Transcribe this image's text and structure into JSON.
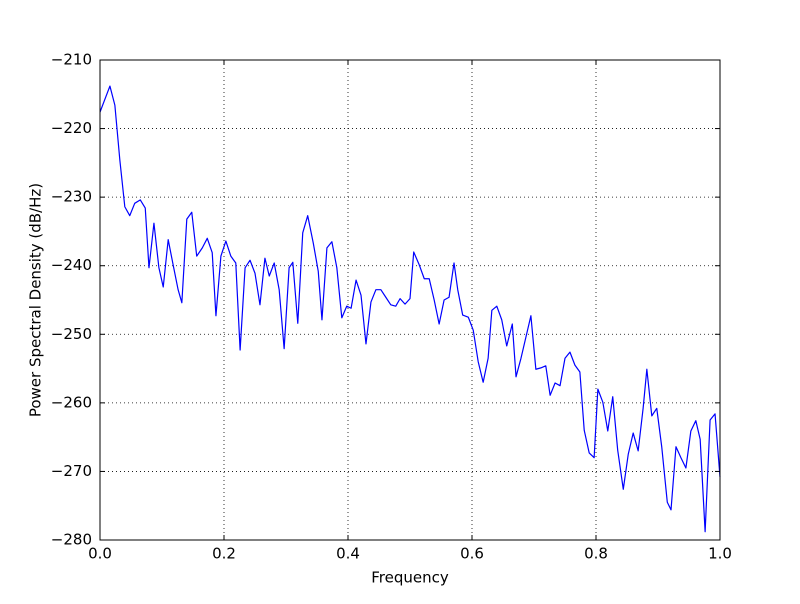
{
  "chart_data": {
    "type": "line",
    "xlabel": "Frequency",
    "ylabel": "Power Spectral Density (dB/Hz)",
    "xlim": [
      0,
      1
    ],
    "ylim": [
      -280,
      -210
    ],
    "xticks": [
      {
        "value": 0,
        "label": "0.0"
      },
      0.2,
      0.4,
      0.6,
      0.8,
      {
        "value": 1,
        "label": "1.0"
      }
    ],
    "yticks": [
      {
        "value": -280,
        "label": "−280"
      },
      {
        "value": -270,
        "label": "−270"
      },
      {
        "value": -260,
        "label": "−260"
      },
      {
        "value": -250,
        "label": "−250"
      },
      {
        "value": -240,
        "label": "−240"
      },
      {
        "value": -230,
        "label": "−230"
      },
      {
        "value": -220,
        "label": "−220"
      },
      {
        "value": -210,
        "label": "−210"
      }
    ],
    "grid": true,
    "series": [
      {
        "color": "#0000ff",
        "x": [
          0,
          0.016,
          0.024,
          0.032,
          0.04,
          0.048,
          0.056,
          0.065,
          0.073,
          0.079,
          0.087,
          0.095,
          0.102,
          0.11,
          0.118,
          0.126,
          0.132,
          0.14,
          0.148,
          0.156,
          0.165,
          0.173,
          0.181,
          0.187,
          0.195,
          0.203,
          0.211,
          0.219,
          0.226,
          0.234,
          0.242,
          0.25,
          0.258,
          0.266,
          0.273,
          0.281,
          0.289,
          0.297,
          0.305,
          0.311,
          0.319,
          0.327,
          0.335,
          0.344,
          0.352,
          0.358,
          0.366,
          0.374,
          0.382,
          0.39,
          0.398,
          0.405,
          0.413,
          0.421,
          0.429,
          0.437,
          0.445,
          0.453,
          0.461,
          0.469,
          0.477,
          0.484,
          0.492,
          0.5,
          0.506,
          0.515,
          0.523,
          0.531,
          0.539,
          0.547,
          0.555,
          0.563,
          0.571,
          0.577,
          0.585,
          0.594,
          0.602,
          0.61,
          0.618,
          0.626,
          0.632,
          0.64,
          0.648,
          0.656,
          0.665,
          0.671,
          0.679,
          0.687,
          0.695,
          0.703,
          0.711,
          0.719,
          0.726,
          0.734,
          0.742,
          0.75,
          0.758,
          0.766,
          0.774,
          0.781,
          0.789,
          0.797,
          0.803,
          0.811,
          0.819,
          0.827,
          0.835,
          0.844,
          0.852,
          0.86,
          0.868,
          0.876,
          0.882,
          0.89,
          0.898,
          0.906,
          0.915,
          0.921,
          0.929,
          0.937,
          0.945,
          0.953,
          0.961,
          0.968,
          0.976,
          0.984,
          0.992,
          1
        ],
        "values": [
          -217.6,
          -213.8,
          -216.6,
          -224.6,
          -231.4,
          -232.7,
          -230.9,
          -230.4,
          -231.6,
          -240.3,
          -233.8,
          -240.3,
          -243.1,
          -236.2,
          -239.9,
          -243.5,
          -245.4,
          -233.2,
          -232.2,
          -238.6,
          -237.4,
          -236.0,
          -238.1,
          -247.3,
          -238.6,
          -236.4,
          -238.6,
          -239.6,
          -252.3,
          -240.3,
          -239.2,
          -241.1,
          -245.7,
          -238.9,
          -241.5,
          -239.6,
          -243.5,
          -252.1,
          -240.3,
          -239.5,
          -248.4,
          -235.2,
          -232.7,
          -236.7,
          -240.8,
          -247.9,
          -237.4,
          -236.5,
          -240.3,
          -247.6,
          -245.9,
          -246.2,
          -242.1,
          -244.3,
          -251.4,
          -245.3,
          -243.5,
          -243.5,
          -244.6,
          -245.7,
          -245.9,
          -244.8,
          -245.6,
          -244.8,
          -238.0,
          -239.9,
          -241.9,
          -241.9,
          -245.0,
          -248.5,
          -245.0,
          -244.6,
          -239.6,
          -243.5,
          -247.2,
          -247.5,
          -249.4,
          -254.0,
          -257.0,
          -253.5,
          -246.5,
          -245.9,
          -247.9,
          -251.7,
          -248.5,
          -256.2,
          -253.5,
          -250.4,
          -247.3,
          -255.1,
          -254.9,
          -254.6,
          -258.9,
          -257.1,
          -257.5,
          -253.5,
          -252.6,
          -254.5,
          -255.5,
          -264.0,
          -267.3,
          -268.0,
          -258.0,
          -259.9,
          -264.1,
          -259.1,
          -266.9,
          -272.6,
          -267.5,
          -264.4,
          -267.0,
          -260.8,
          -255.1,
          -261.9,
          -260.8,
          -266.4,
          -274.5,
          -275.6,
          -266.4,
          -268.0,
          -269.5,
          -264.1,
          -262.6,
          -265.3,
          -278.8,
          -262.5,
          -261.6,
          -270.8
        ]
      }
    ]
  }
}
